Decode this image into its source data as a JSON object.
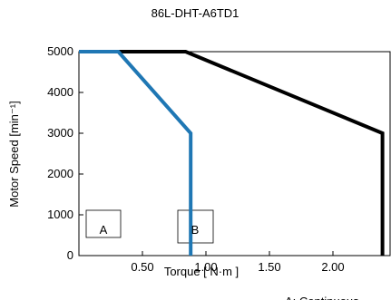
{
  "chart_data": {
    "type": "line",
    "title": "86L-DHT-A6TD1",
    "x_label": "Torque [ N·m ]",
    "y_label": "Motor Speed [min⁻¹]",
    "xlim": [
      0,
      2.45
    ],
    "ylim": [
      0,
      5000
    ],
    "xticks": [
      {
        "value": 0.5,
        "label": "0.50"
      },
      {
        "value": 1,
        "label": "1.00"
      },
      {
        "value": 1.5,
        "label": "1.50"
      },
      {
        "value": 2,
        "label": "2.00"
      }
    ],
    "yticks": [
      0,
      1000,
      2000,
      3000,
      4000,
      5000
    ],
    "grid": false,
    "series": [
      {
        "color": "#000000",
        "x": [
          0,
          0.84,
          2.39,
          2.39
        ],
        "values": [
          5000,
          5000,
          3000,
          0
        ]
      },
      {
        "color": "#1f77b4",
        "x": [
          0,
          0.31,
          0.88,
          0.88
        ],
        "values": [
          5000,
          5000,
          3000,
          0
        ]
      }
    ],
    "annotations": [
      "A",
      "B",
      "A: Continuous"
    ]
  }
}
